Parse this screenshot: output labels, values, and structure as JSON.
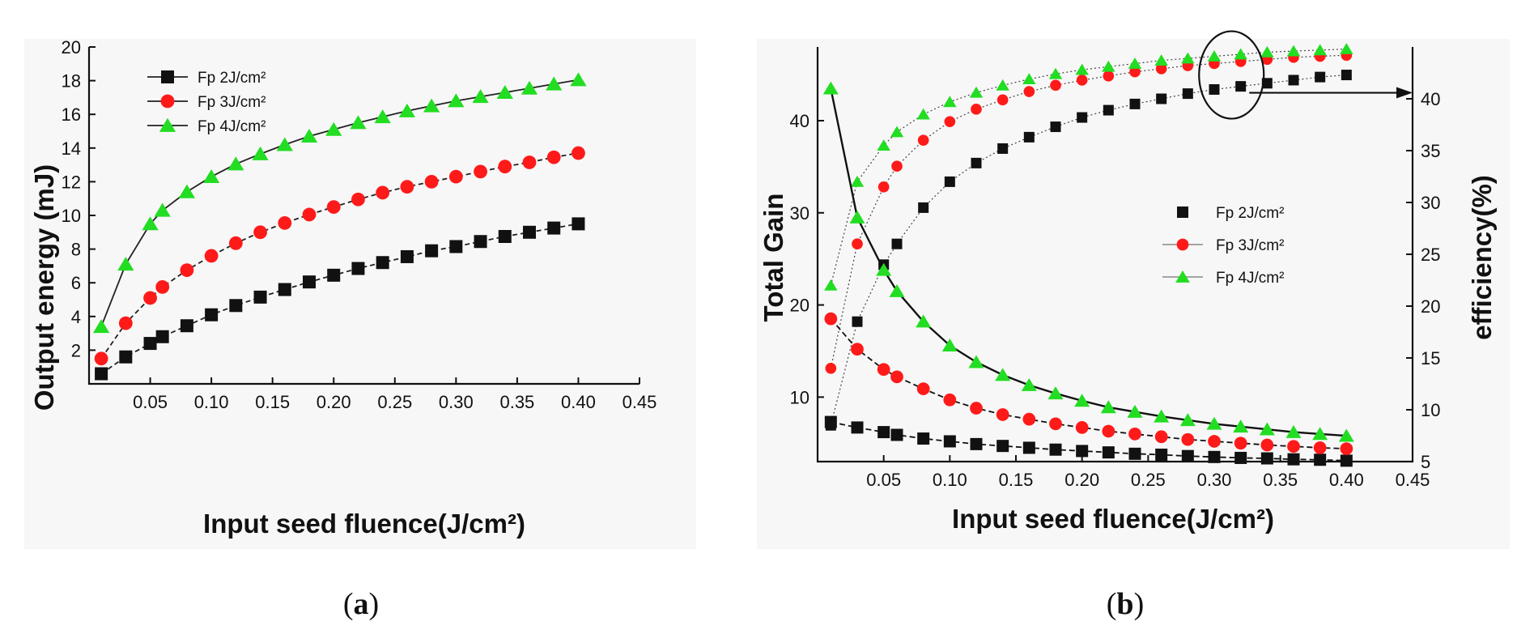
{
  "panels": {
    "a": {
      "caption_open": "(",
      "caption_letter": "a",
      "caption_close": ")"
    },
    "b": {
      "caption_open": "(",
      "caption_letter": "b",
      "caption_close": ")"
    }
  },
  "chart_data": [
    {
      "id": "a",
      "type": "line",
      "title": "",
      "xlabel": "Input seed fluence(J/cm²)",
      "ylabel": "Output energy (mJ)",
      "xlim": [
        0.0,
        0.45
      ],
      "ylim": [
        0,
        20
      ],
      "xticks": [
        "0.05",
        "0.10",
        "0.15",
        "0.20",
        "0.25",
        "0.30",
        "0.35",
        "0.40",
        "0.45"
      ],
      "yticks": [
        "2",
        "4",
        "6",
        "8",
        "10",
        "12",
        "14",
        "16",
        "18",
        "20"
      ],
      "legend_position": "top-left",
      "x": [
        0.01,
        0.03,
        0.05,
        0.06,
        0.08,
        0.1,
        0.12,
        0.14,
        0.16,
        0.18,
        0.2,
        0.22,
        0.24,
        0.26,
        0.28,
        0.3,
        0.32,
        0.34,
        0.36,
        0.38,
        0.4
      ],
      "series": [
        {
          "name": "Fp 2J/cm²",
          "color": "#111111",
          "marker": "square",
          "values": [
            0.6,
            1.6,
            2.4,
            2.8,
            3.45,
            4.1,
            4.65,
            5.15,
            5.6,
            6.05,
            6.45,
            6.85,
            7.2,
            7.55,
            7.9,
            8.15,
            8.45,
            8.75,
            9.0,
            9.25,
            9.5
          ]
        },
        {
          "name": "Fp 3J/cm²",
          "color": "#ff1a1a",
          "marker": "circle",
          "values": [
            1.5,
            3.6,
            5.1,
            5.75,
            6.75,
            7.6,
            8.35,
            9.0,
            9.55,
            10.05,
            10.5,
            10.95,
            11.35,
            11.7,
            12.0,
            12.3,
            12.6,
            12.9,
            13.15,
            13.45,
            13.7
          ]
        },
        {
          "name": "Fp 4J/cm²",
          "color": "#22dd22",
          "marker": "triangle",
          "values": [
            3.4,
            7.1,
            9.5,
            10.3,
            11.4,
            12.3,
            13.05,
            13.65,
            14.2,
            14.7,
            15.1,
            15.5,
            15.85,
            16.2,
            16.5,
            16.8,
            17.05,
            17.3,
            17.55,
            17.8,
            18.05
          ]
        }
      ]
    },
    {
      "id": "b",
      "type": "line",
      "title": "",
      "xlabel": "Input seed fluence(J/cm²)",
      "ylabel": "Total Gain",
      "y2label": "efficiency(%)",
      "xlim": [
        0.0,
        0.45
      ],
      "ylim": [
        3,
        48
      ],
      "y2lim": [
        5,
        45
      ],
      "xticks": [
        "0.05",
        "0.10",
        "0.15",
        "0.20",
        "0.25",
        "0.30",
        "0.35",
        "0.40",
        "0.45"
      ],
      "yticks": [
        "10",
        "20",
        "30",
        "40"
      ],
      "y2ticks": [
        "5",
        "10",
        "15",
        "20",
        "25",
        "30",
        "35",
        "40"
      ],
      "legend_position": "center-right",
      "x": [
        0.01,
        0.03,
        0.05,
        0.06,
        0.08,
        0.1,
        0.12,
        0.14,
        0.16,
        0.18,
        0.2,
        0.22,
        0.24,
        0.26,
        0.28,
        0.3,
        0.32,
        0.34,
        0.36,
        0.38,
        0.4
      ],
      "gain_series": [
        {
          "name": "Fp 2J/cm²",
          "color": "#111111",
          "marker": "square",
          "values": [
            7.3,
            6.7,
            6.2,
            5.9,
            5.5,
            5.2,
            4.9,
            4.7,
            4.5,
            4.3,
            4.15,
            4.0,
            3.85,
            3.75,
            3.6,
            3.5,
            3.4,
            3.35,
            3.25,
            3.2,
            3.1
          ]
        },
        {
          "name": "Fp 3J/cm²",
          "color": "#ff1a1a",
          "marker": "circle",
          "values": [
            18.5,
            15.2,
            13.0,
            12.2,
            10.9,
            9.7,
            8.8,
            8.1,
            7.6,
            7.1,
            6.7,
            6.3,
            6.0,
            5.7,
            5.4,
            5.2,
            5.0,
            4.8,
            4.65,
            4.5,
            4.4
          ]
        },
        {
          "name": "Fp 4J/cm²",
          "color": "#22dd22",
          "marker": "triangle",
          "values": [
            43.5,
            29.5,
            23.8,
            21.5,
            18.2,
            15.6,
            13.8,
            12.4,
            11.3,
            10.4,
            9.6,
            8.9,
            8.4,
            7.9,
            7.5,
            7.1,
            6.8,
            6.5,
            6.2,
            6.0,
            5.8
          ]
        }
      ],
      "efficiency_series": [
        {
          "name": "Fp 2J/cm² efficiency",
          "color": "#111111",
          "marker": "square",
          "values": [
            8.5,
            18.5,
            24.0,
            26.0,
            29.5,
            32.0,
            33.8,
            35.2,
            36.3,
            37.3,
            38.2,
            38.9,
            39.5,
            40.0,
            40.5,
            40.9,
            41.2,
            41.5,
            41.8,
            42.1,
            42.3
          ]
        },
        {
          "name": "Fp 3J/cm² efficiency",
          "color": "#ff1a1a",
          "marker": "circle",
          "values": [
            14.0,
            26.0,
            31.5,
            33.5,
            36.0,
            37.8,
            39.0,
            39.9,
            40.7,
            41.3,
            41.8,
            42.2,
            42.6,
            42.9,
            43.2,
            43.4,
            43.6,
            43.8,
            44.0,
            44.1,
            44.2
          ]
        },
        {
          "name": "Fp 4J/cm² efficiency",
          "color": "#22dd22",
          "marker": "triangle",
          "values": [
            22.0,
            32.0,
            35.5,
            36.8,
            38.5,
            39.7,
            40.6,
            41.3,
            41.9,
            42.4,
            42.8,
            43.1,
            43.4,
            43.7,
            43.9,
            44.1,
            44.3,
            44.5,
            44.6,
            44.7,
            44.8
          ]
        }
      ],
      "annotation": {
        "type": "ellipse-with-arrow",
        "target": "efficiency curves near x=0.31",
        "arrow_direction": "right"
      }
    }
  ]
}
